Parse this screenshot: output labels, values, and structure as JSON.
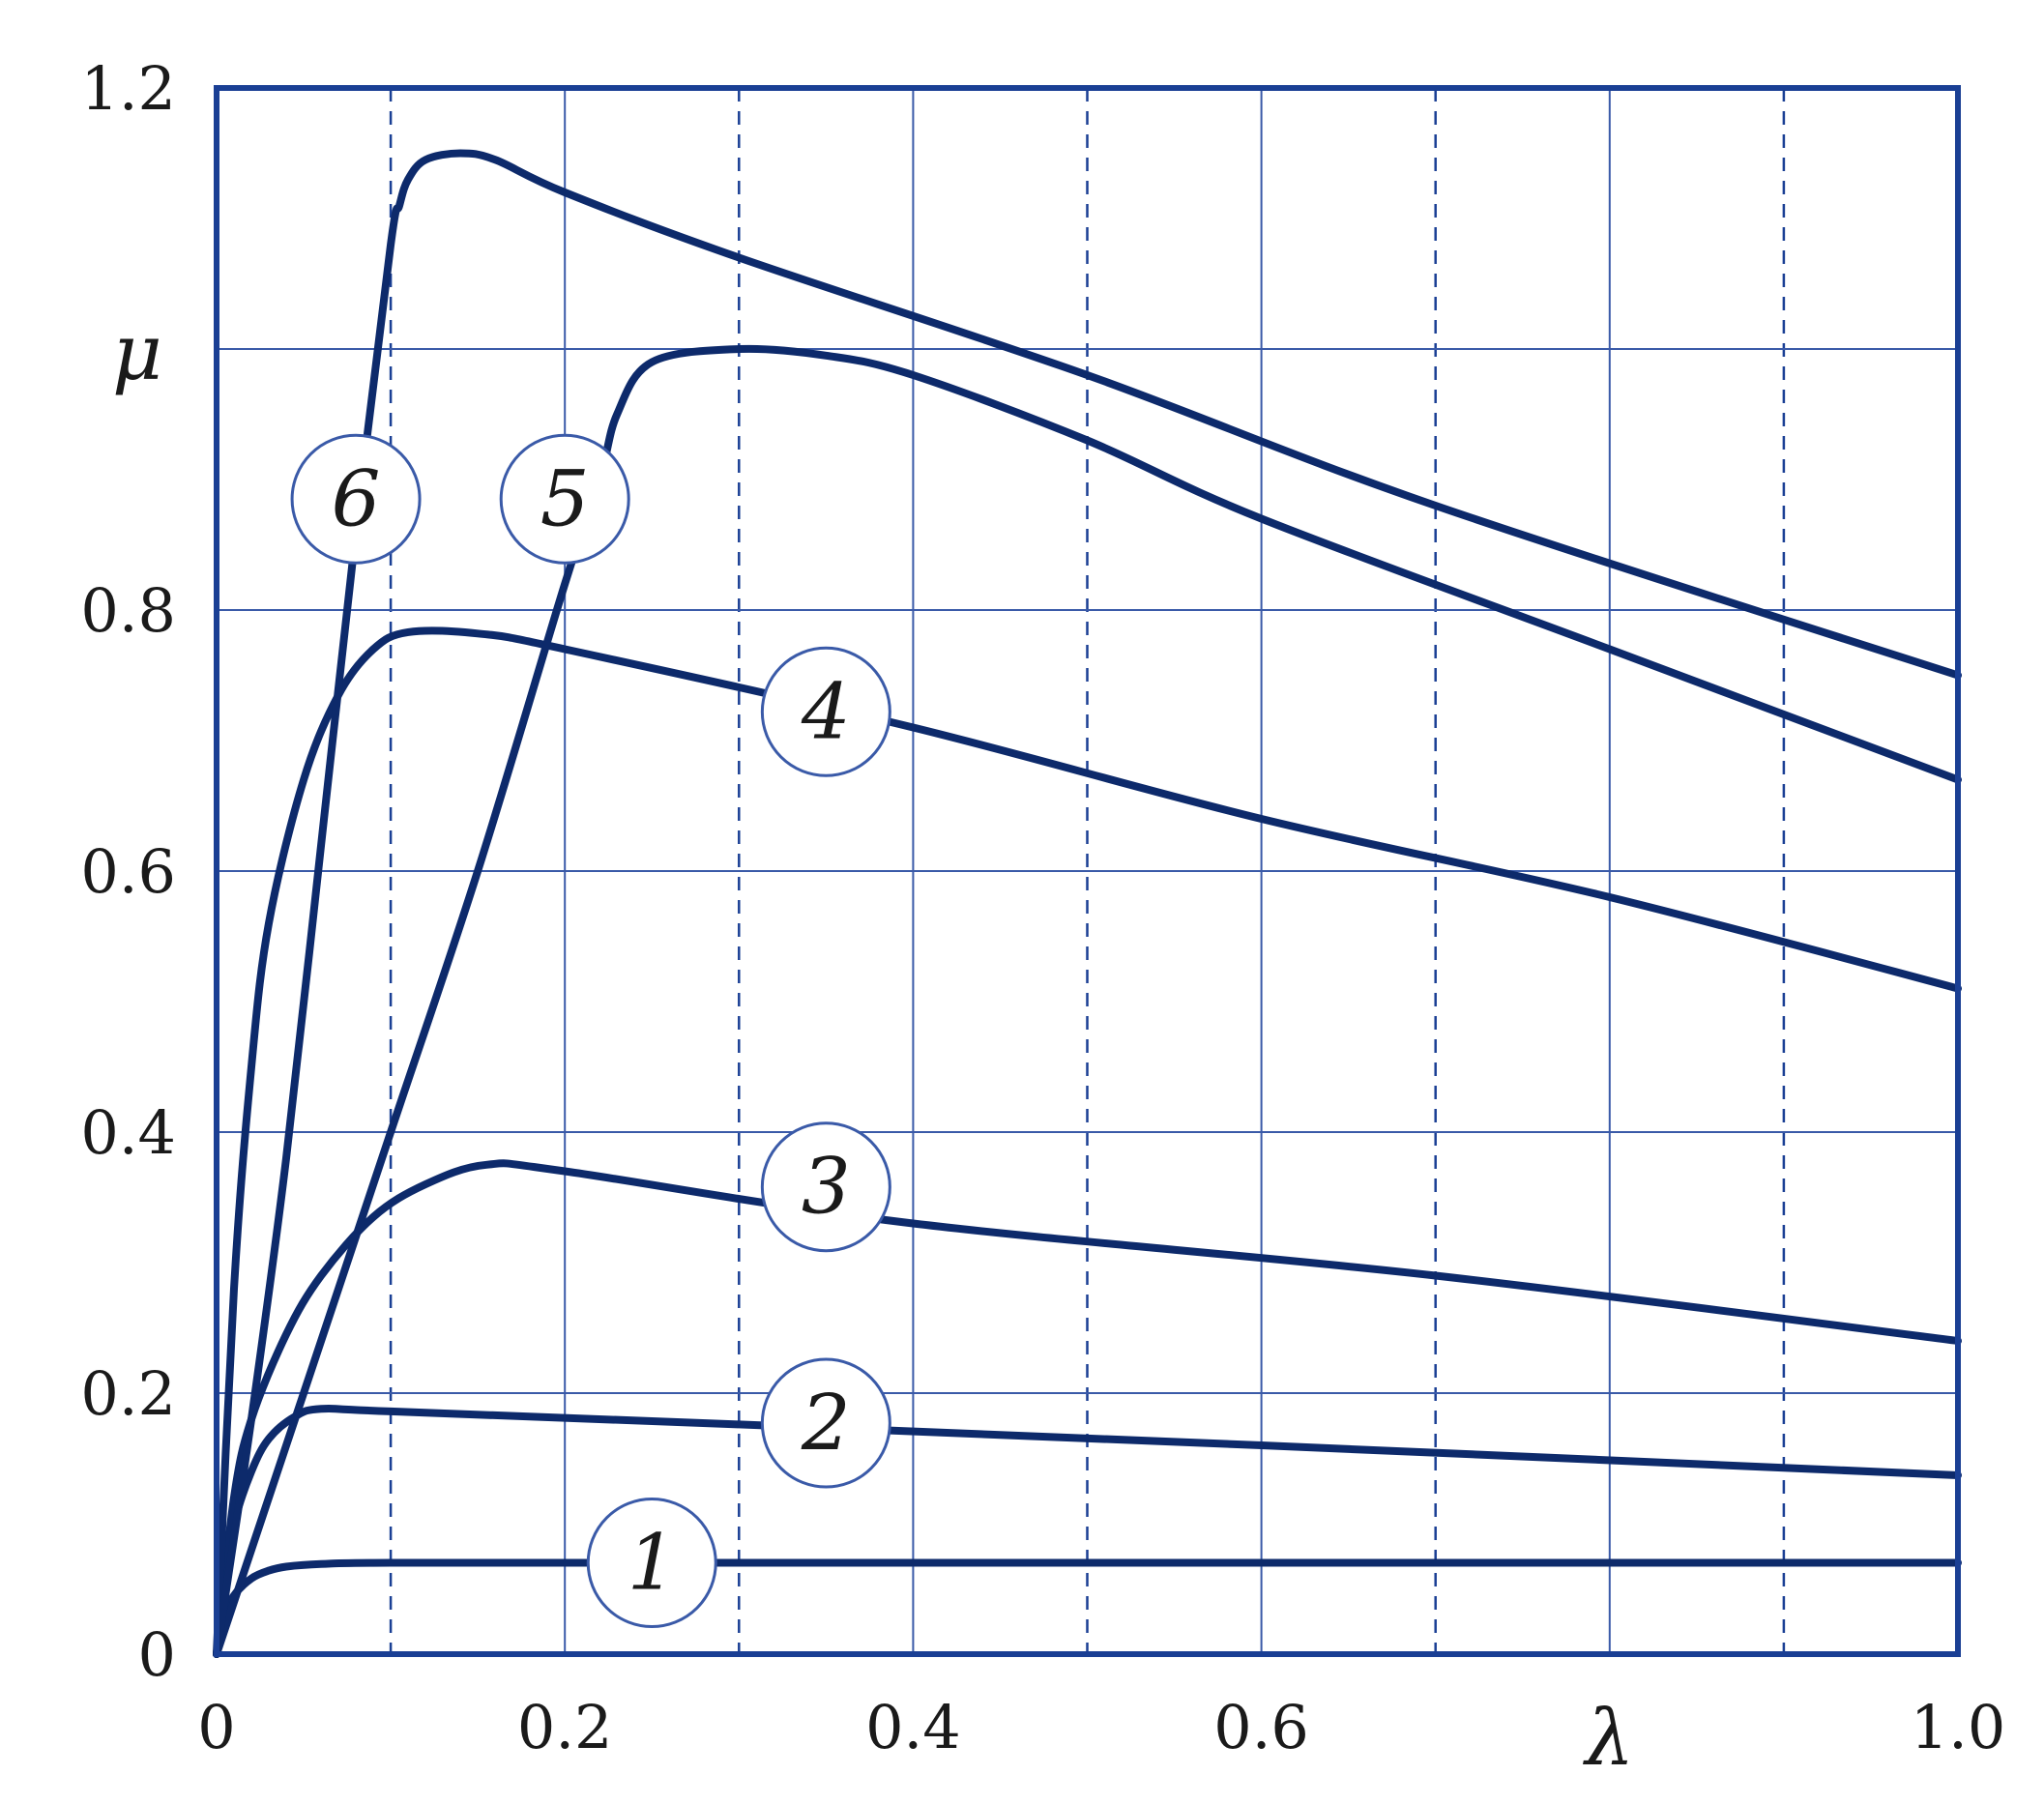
{
  "chart_data": {
    "type": "line",
    "xlabel": "λ",
    "ylabel": "μ",
    "xlim": [
      0,
      1.0
    ],
    "ylim": [
      0,
      1.2
    ],
    "x_ticks": [
      "0",
      "0.2",
      "0.4",
      "0.6",
      "1.0"
    ],
    "y_ticks": [
      "0",
      "0.2",
      "0.4",
      "0.6",
      "0.8",
      "1.2"
    ],
    "grid": true,
    "colors": {
      "line": "#0d2a6b",
      "grid": "#3a5aa8",
      "frame": "#1a3f94"
    },
    "series": [
      {
        "name": "1",
        "x": [
          0,
          0.005,
          0.01,
          0.02,
          0.03,
          0.04,
          0.06,
          0.1,
          0.3,
          0.6,
          1.0
        ],
        "values": [
          0,
          0.03,
          0.045,
          0.058,
          0.064,
          0.067,
          0.069,
          0.07,
          0.07,
          0.07,
          0.07
        ]
      },
      {
        "name": "2",
        "x": [
          0,
          0.005,
          0.01,
          0.02,
          0.03,
          0.045,
          0.06,
          0.1,
          0.3,
          0.6,
          1.0
        ],
        "values": [
          0,
          0.06,
          0.1,
          0.14,
          0.165,
          0.182,
          0.188,
          0.186,
          0.176,
          0.16,
          0.137
        ]
      },
      {
        "name": "3",
        "x": [
          0,
          0.01,
          0.02,
          0.04,
          0.06,
          0.09,
          0.12,
          0.155,
          0.2,
          0.4,
          0.7,
          1.0
        ],
        "values": [
          0,
          0.12,
          0.18,
          0.245,
          0.29,
          0.335,
          0.36,
          0.375,
          0.37,
          0.33,
          0.29,
          0.24
        ]
      },
      {
        "name": "4",
        "x": [
          0,
          0.01,
          0.02,
          0.03,
          0.05,
          0.07,
          0.09,
          0.11,
          0.15,
          0.2,
          0.4,
          0.6,
          0.8,
          1.0
        ],
        "values": [
          0,
          0.28,
          0.45,
          0.56,
          0.67,
          0.735,
          0.77,
          0.783,
          0.782,
          0.77,
          0.71,
          0.64,
          0.58,
          0.51
        ]
      },
      {
        "name": "5",
        "x": [
          0,
          0.05,
          0.1,
          0.15,
          0.2,
          0.22,
          0.23,
          0.25,
          0.3,
          0.35,
          0.4,
          0.5,
          0.6,
          0.8,
          1.0
        ],
        "values": [
          0,
          0.2,
          0.4,
          0.6,
          0.82,
          0.9,
          0.95,
          0.99,
          1.0,
          0.995,
          0.98,
          0.93,
          0.87,
          0.77,
          0.67
        ]
      },
      {
        "name": "6",
        "x": [
          0,
          0.02,
          0.04,
          0.06,
          0.08,
          0.1,
          0.105,
          0.11,
          0.12,
          0.14,
          0.16,
          0.2,
          0.3,
          0.5,
          0.7,
          1.0
        ],
        "values": [
          0,
          0.18,
          0.38,
          0.62,
          0.86,
          1.08,
          1.11,
          1.13,
          1.145,
          1.15,
          1.145,
          1.12,
          1.07,
          0.98,
          0.88,
          0.75
        ]
      }
    ],
    "label_positions": [
      {
        "text": "1",
        "x": 0.25,
        "y": 0.07
      },
      {
        "text": "2",
        "x": 0.35,
        "y": 0.177
      },
      {
        "text": "3",
        "x": 0.35,
        "y": 0.358
      },
      {
        "text": "4",
        "x": 0.35,
        "y": 0.722
      },
      {
        "text": "5",
        "x": 0.2,
        "y": 0.885
      },
      {
        "text": "6",
        "x": 0.08,
        "y": 0.885
      }
    ]
  }
}
